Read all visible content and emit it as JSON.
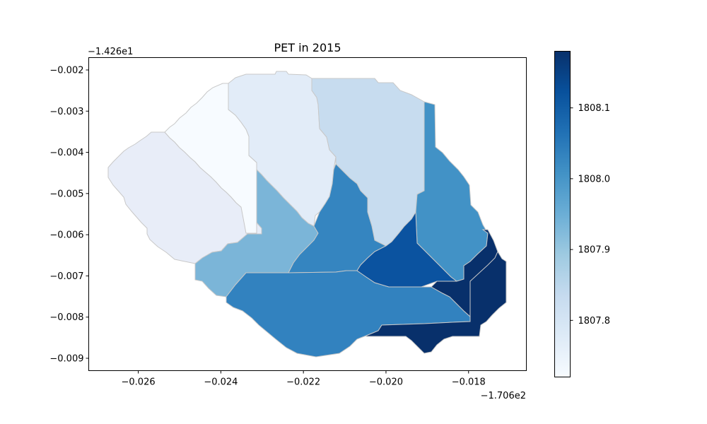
{
  "title": "PET in 2015",
  "x_offset_label": "−1.706e2",
  "y_offset_label": "−1.426e1",
  "chart_data": {
    "type": "heatmap",
    "title": "PET in 2015",
    "xlim": [
      -0.0272,
      -0.0166
    ],
    "ylim": [
      -0.0093,
      -0.0017
    ],
    "x_ticks": [
      {
        "value": -0.026,
        "label": "−0.026"
      },
      {
        "value": -0.024,
        "label": "−0.024"
      },
      {
        "value": -0.022,
        "label": "−0.022"
      },
      {
        "value": -0.02,
        "label": "−0.020"
      },
      {
        "value": -0.018,
        "label": "−0.018"
      }
    ],
    "y_ticks": [
      {
        "value": -0.002,
        "label": "−0.002"
      },
      {
        "value": -0.003,
        "label": "−0.003"
      },
      {
        "value": -0.004,
        "label": "−0.004"
      },
      {
        "value": -0.005,
        "label": "−0.005"
      },
      {
        "value": -0.006,
        "label": "−0.006"
      },
      {
        "value": -0.007,
        "label": "−0.007"
      },
      {
        "value": -0.008,
        "label": "−0.008"
      },
      {
        "value": -0.009,
        "label": "−0.009"
      }
    ],
    "colorbar": {
      "min": 1807.72,
      "max": 1808.18,
      "ticks": [
        {
          "value": 1807.8,
          "label": "1807.8"
        },
        {
          "value": 1807.9,
          "label": "1807.9"
        },
        {
          "value": 1808.0,
          "label": "1808.0"
        },
        {
          "value": 1808.1,
          "label": "1808.1"
        }
      ]
    },
    "regions": [
      {
        "value": 1807.79,
        "color": "#e8edf8"
      },
      {
        "value": 1807.72,
        "color": "#f7fbff"
      },
      {
        "value": 1807.76,
        "color": "#e2ecf8"
      },
      {
        "value": 1807.83,
        "color": "#c7dcef"
      },
      {
        "value": 1807.96,
        "color": "#7bb5d8"
      },
      {
        "value": 1808.03,
        "color": "#3585c0"
      },
      {
        "value": 1808.01,
        "color": "#4292c6"
      },
      {
        "value": 1808.03,
        "color": "#3282bf"
      },
      {
        "value": 1808.1,
        "color": "#0b53a0"
      },
      {
        "value": 1808.18,
        "color": "#08306b"
      }
    ]
  }
}
